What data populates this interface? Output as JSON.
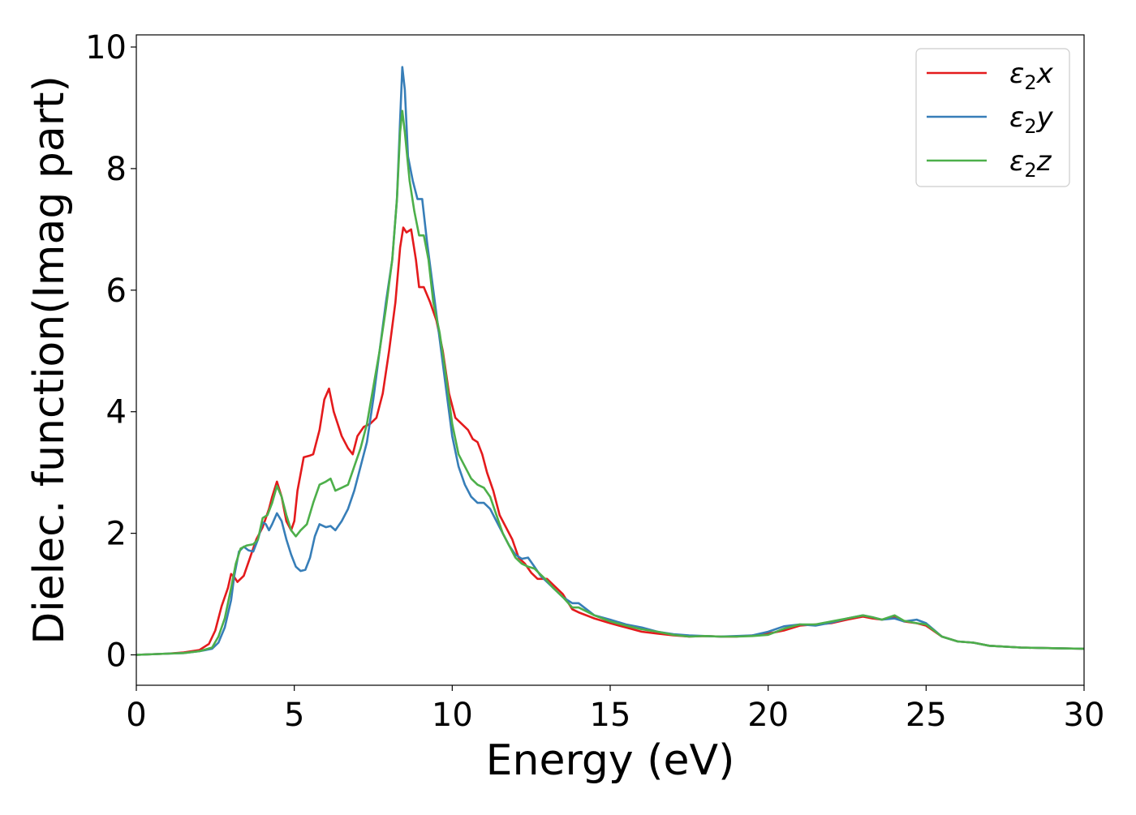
{
  "chart_data": {
    "type": "line",
    "title": "",
    "xlabel": "Energy (eV)",
    "ylabel": "Dielec. function(Imag part)",
    "xlim": [
      0,
      30
    ],
    "ylim": [
      -0.5,
      10.2
    ],
    "xticks": [
      0,
      5,
      10,
      15,
      20,
      25,
      30
    ],
    "yticks": [
      0,
      2,
      4,
      6,
      8,
      10
    ],
    "grid": false,
    "legend_position": "top-right",
    "series": [
      {
        "name": "ε₂x",
        "legend": {
          "base": "ε",
          "sub": "2",
          "suffix": "x"
        },
        "color": "#e41a1c",
        "points": [
          [
            0,
            0
          ],
          [
            1,
            0.02
          ],
          [
            1.5,
            0.04
          ],
          [
            2,
            0.08
          ],
          [
            2.3,
            0.18
          ],
          [
            2.5,
            0.4
          ],
          [
            2.7,
            0.8
          ],
          [
            2.9,
            1.1
          ],
          [
            3.0,
            1.33
          ],
          [
            3.1,
            1.28
          ],
          [
            3.2,
            1.2
          ],
          [
            3.4,
            1.3
          ],
          [
            3.6,
            1.6
          ],
          [
            3.8,
            1.9
          ],
          [
            3.9,
            2.0
          ],
          [
            4.0,
            2.1
          ],
          [
            4.2,
            2.4
          ],
          [
            4.3,
            2.6
          ],
          [
            4.45,
            2.85
          ],
          [
            4.6,
            2.6
          ],
          [
            4.75,
            2.2
          ],
          [
            4.9,
            2.05
          ],
          [
            5.0,
            2.2
          ],
          [
            5.1,
            2.7
          ],
          [
            5.3,
            3.25
          ],
          [
            5.5,
            3.28
          ],
          [
            5.6,
            3.3
          ],
          [
            5.8,
            3.7
          ],
          [
            5.95,
            4.2
          ],
          [
            6.1,
            4.38
          ],
          [
            6.25,
            4.0
          ],
          [
            6.5,
            3.6
          ],
          [
            6.7,
            3.4
          ],
          [
            6.85,
            3.3
          ],
          [
            7.0,
            3.6
          ],
          [
            7.2,
            3.75
          ],
          [
            7.4,
            3.8
          ],
          [
            7.6,
            3.9
          ],
          [
            7.8,
            4.3
          ],
          [
            8.0,
            5.0
          ],
          [
            8.2,
            5.8
          ],
          [
            8.35,
            6.7
          ],
          [
            8.45,
            7.03
          ],
          [
            8.55,
            6.95
          ],
          [
            8.7,
            7.0
          ],
          [
            8.85,
            6.5
          ],
          [
            8.95,
            6.05
          ],
          [
            9.1,
            6.05
          ],
          [
            9.3,
            5.8
          ],
          [
            9.5,
            5.5
          ],
          [
            9.7,
            5.0
          ],
          [
            9.9,
            4.3
          ],
          [
            10.1,
            3.9
          ],
          [
            10.3,
            3.8
          ],
          [
            10.5,
            3.7
          ],
          [
            10.65,
            3.55
          ],
          [
            10.8,
            3.5
          ],
          [
            10.95,
            3.3
          ],
          [
            11.1,
            3.0
          ],
          [
            11.3,
            2.7
          ],
          [
            11.5,
            2.3
          ],
          [
            11.7,
            2.1
          ],
          [
            11.9,
            1.9
          ],
          [
            12.1,
            1.6
          ],
          [
            12.3,
            1.5
          ],
          [
            12.5,
            1.35
          ],
          [
            12.7,
            1.25
          ],
          [
            13.0,
            1.25
          ],
          [
            13.2,
            1.15
          ],
          [
            13.5,
            1.0
          ],
          [
            13.8,
            0.75
          ],
          [
            14.0,
            0.7
          ],
          [
            14.5,
            0.6
          ],
          [
            15.0,
            0.52
          ],
          [
            15.5,
            0.45
          ],
          [
            16.0,
            0.38
          ],
          [
            16.5,
            0.35
          ],
          [
            17.0,
            0.32
          ],
          [
            17.5,
            0.3
          ],
          [
            18.0,
            0.31
          ],
          [
            18.5,
            0.3
          ],
          [
            19.0,
            0.3
          ],
          [
            19.5,
            0.32
          ],
          [
            20.0,
            0.35
          ],
          [
            20.5,
            0.4
          ],
          [
            21.0,
            0.48
          ],
          [
            21.5,
            0.5
          ],
          [
            22.0,
            0.52
          ],
          [
            22.5,
            0.58
          ],
          [
            23.0,
            0.63
          ],
          [
            23.3,
            0.6
          ],
          [
            23.6,
            0.58
          ],
          [
            24.0,
            0.62
          ],
          [
            24.3,
            0.55
          ],
          [
            24.7,
            0.52
          ],
          [
            25.0,
            0.48
          ],
          [
            25.5,
            0.3
          ],
          [
            26.0,
            0.22
          ],
          [
            26.5,
            0.2
          ],
          [
            27.0,
            0.15
          ],
          [
            28.0,
            0.12
          ],
          [
            29.0,
            0.11
          ],
          [
            30.0,
            0.1
          ]
        ]
      },
      {
        "name": "ε₂y",
        "legend": {
          "base": "ε",
          "sub": "2",
          "suffix": "y"
        },
        "color": "#377eb8",
        "points": [
          [
            0,
            0
          ],
          [
            1,
            0.02
          ],
          [
            1.5,
            0.03
          ],
          [
            2,
            0.06
          ],
          [
            2.4,
            0.1
          ],
          [
            2.6,
            0.2
          ],
          [
            2.8,
            0.45
          ],
          [
            3.0,
            0.9
          ],
          [
            3.1,
            1.3
          ],
          [
            3.25,
            1.7
          ],
          [
            3.4,
            1.78
          ],
          [
            3.55,
            1.72
          ],
          [
            3.7,
            1.7
          ],
          [
            3.85,
            1.9
          ],
          [
            4.0,
            2.18
          ],
          [
            4.1,
            2.15
          ],
          [
            4.2,
            2.05
          ],
          [
            4.3,
            2.15
          ],
          [
            4.45,
            2.33
          ],
          [
            4.6,
            2.2
          ],
          [
            4.75,
            1.9
          ],
          [
            4.9,
            1.65
          ],
          [
            5.05,
            1.45
          ],
          [
            5.2,
            1.38
          ],
          [
            5.35,
            1.4
          ],
          [
            5.5,
            1.6
          ],
          [
            5.65,
            1.95
          ],
          [
            5.8,
            2.15
          ],
          [
            6.0,
            2.1
          ],
          [
            6.15,
            2.12
          ],
          [
            6.3,
            2.05
          ],
          [
            6.5,
            2.2
          ],
          [
            6.7,
            2.4
          ],
          [
            6.9,
            2.7
          ],
          [
            7.1,
            3.1
          ],
          [
            7.3,
            3.5
          ],
          [
            7.5,
            4.2
          ],
          [
            7.7,
            5.0
          ],
          [
            7.9,
            5.8
          ],
          [
            8.1,
            6.5
          ],
          [
            8.25,
            7.5
          ],
          [
            8.35,
            8.8
          ],
          [
            8.42,
            9.67
          ],
          [
            8.5,
            9.3
          ],
          [
            8.6,
            8.2
          ],
          [
            8.75,
            7.8
          ],
          [
            8.9,
            7.5
          ],
          [
            9.05,
            7.5
          ],
          [
            9.2,
            6.8
          ],
          [
            9.4,
            6.0
          ],
          [
            9.6,
            5.2
          ],
          [
            9.8,
            4.4
          ],
          [
            10.0,
            3.6
          ],
          [
            10.2,
            3.1
          ],
          [
            10.4,
            2.8
          ],
          [
            10.6,
            2.6
          ],
          [
            10.8,
            2.5
          ],
          [
            11.0,
            2.5
          ],
          [
            11.2,
            2.4
          ],
          [
            11.4,
            2.2
          ],
          [
            11.6,
            2.0
          ],
          [
            11.8,
            1.8
          ],
          [
            12.0,
            1.65
          ],
          [
            12.2,
            1.58
          ],
          [
            12.4,
            1.6
          ],
          [
            12.6,
            1.45
          ],
          [
            12.8,
            1.3
          ],
          [
            13.0,
            1.2
          ],
          [
            13.2,
            1.1
          ],
          [
            13.5,
            0.95
          ],
          [
            13.8,
            0.85
          ],
          [
            14.0,
            0.85
          ],
          [
            14.5,
            0.65
          ],
          [
            15.0,
            0.58
          ],
          [
            15.5,
            0.5
          ],
          [
            16.0,
            0.45
          ],
          [
            16.5,
            0.38
          ],
          [
            17.0,
            0.34
          ],
          [
            17.5,
            0.32
          ],
          [
            18.0,
            0.31
          ],
          [
            18.5,
            0.3
          ],
          [
            19.0,
            0.31
          ],
          [
            19.5,
            0.32
          ],
          [
            20.0,
            0.38
          ],
          [
            20.5,
            0.47
          ],
          [
            21.0,
            0.5
          ],
          [
            21.5,
            0.48
          ],
          [
            22.0,
            0.53
          ],
          [
            22.5,
            0.6
          ],
          [
            23.0,
            0.65
          ],
          [
            23.3,
            0.62
          ],
          [
            23.6,
            0.58
          ],
          [
            24.0,
            0.6
          ],
          [
            24.3,
            0.55
          ],
          [
            24.7,
            0.58
          ],
          [
            25.0,
            0.52
          ],
          [
            25.5,
            0.3
          ],
          [
            26.0,
            0.22
          ],
          [
            26.5,
            0.2
          ],
          [
            27.0,
            0.15
          ],
          [
            28.0,
            0.12
          ],
          [
            29.0,
            0.11
          ],
          [
            30.0,
            0.1
          ]
        ]
      },
      {
        "name": "ε₂z",
        "legend": {
          "base": "ε",
          "sub": "2",
          "suffix": "z"
        },
        "color": "#4daf4a",
        "points": [
          [
            0,
            0
          ],
          [
            1,
            0.02
          ],
          [
            1.5,
            0.03
          ],
          [
            2,
            0.06
          ],
          [
            2.4,
            0.12
          ],
          [
            2.6,
            0.3
          ],
          [
            2.8,
            0.6
          ],
          [
            3.0,
            1.1
          ],
          [
            3.15,
            1.5
          ],
          [
            3.3,
            1.75
          ],
          [
            3.5,
            1.8
          ],
          [
            3.7,
            1.82
          ],
          [
            3.85,
            1.9
          ],
          [
            4.0,
            2.25
          ],
          [
            4.15,
            2.3
          ],
          [
            4.3,
            2.5
          ],
          [
            4.45,
            2.78
          ],
          [
            4.6,
            2.6
          ],
          [
            4.75,
            2.3
          ],
          [
            4.9,
            2.05
          ],
          [
            5.05,
            1.95
          ],
          [
            5.2,
            2.05
          ],
          [
            5.4,
            2.15
          ],
          [
            5.6,
            2.5
          ],
          [
            5.8,
            2.8
          ],
          [
            6.0,
            2.85
          ],
          [
            6.15,
            2.9
          ],
          [
            6.3,
            2.7
          ],
          [
            6.5,
            2.75
          ],
          [
            6.7,
            2.8
          ],
          [
            6.9,
            3.1
          ],
          [
            7.1,
            3.4
          ],
          [
            7.3,
            3.8
          ],
          [
            7.5,
            4.4
          ],
          [
            7.7,
            5.0
          ],
          [
            7.9,
            5.7
          ],
          [
            8.1,
            6.5
          ],
          [
            8.25,
            7.5
          ],
          [
            8.35,
            8.6
          ],
          [
            8.42,
            8.95
          ],
          [
            8.5,
            8.6
          ],
          [
            8.65,
            7.8
          ],
          [
            8.8,
            7.3
          ],
          [
            8.95,
            6.9
          ],
          [
            9.1,
            6.9
          ],
          [
            9.25,
            6.5
          ],
          [
            9.4,
            5.8
          ],
          [
            9.6,
            5.3
          ],
          [
            9.8,
            4.6
          ],
          [
            10.0,
            3.8
          ],
          [
            10.2,
            3.3
          ],
          [
            10.4,
            3.1
          ],
          [
            10.6,
            2.9
          ],
          [
            10.8,
            2.8
          ],
          [
            11.0,
            2.75
          ],
          [
            11.2,
            2.6
          ],
          [
            11.4,
            2.3
          ],
          [
            11.6,
            2.0
          ],
          [
            11.8,
            1.8
          ],
          [
            12.0,
            1.6
          ],
          [
            12.2,
            1.5
          ],
          [
            12.4,
            1.45
          ],
          [
            12.6,
            1.42
          ],
          [
            12.8,
            1.32
          ],
          [
            13.0,
            1.22
          ],
          [
            13.2,
            1.1
          ],
          [
            13.5,
            0.95
          ],
          [
            13.8,
            0.78
          ],
          [
            14.0,
            0.78
          ],
          [
            14.5,
            0.65
          ],
          [
            15.0,
            0.55
          ],
          [
            15.5,
            0.48
          ],
          [
            16.0,
            0.42
          ],
          [
            16.5,
            0.38
          ],
          [
            17.0,
            0.33
          ],
          [
            17.5,
            0.3
          ],
          [
            18.0,
            0.31
          ],
          [
            18.5,
            0.3
          ],
          [
            19.0,
            0.3
          ],
          [
            19.5,
            0.31
          ],
          [
            20.0,
            0.33
          ],
          [
            20.5,
            0.43
          ],
          [
            21.0,
            0.5
          ],
          [
            21.5,
            0.5
          ],
          [
            22.0,
            0.55
          ],
          [
            22.5,
            0.6
          ],
          [
            23.0,
            0.65
          ],
          [
            23.3,
            0.62
          ],
          [
            23.6,
            0.58
          ],
          [
            24.0,
            0.65
          ],
          [
            24.3,
            0.56
          ],
          [
            24.7,
            0.52
          ],
          [
            25.0,
            0.5
          ],
          [
            25.5,
            0.3
          ],
          [
            26.0,
            0.22
          ],
          [
            26.5,
            0.2
          ],
          [
            27.0,
            0.15
          ],
          [
            28.0,
            0.12
          ],
          [
            29.0,
            0.11
          ],
          [
            30.0,
            0.1
          ]
        ]
      }
    ]
  }
}
